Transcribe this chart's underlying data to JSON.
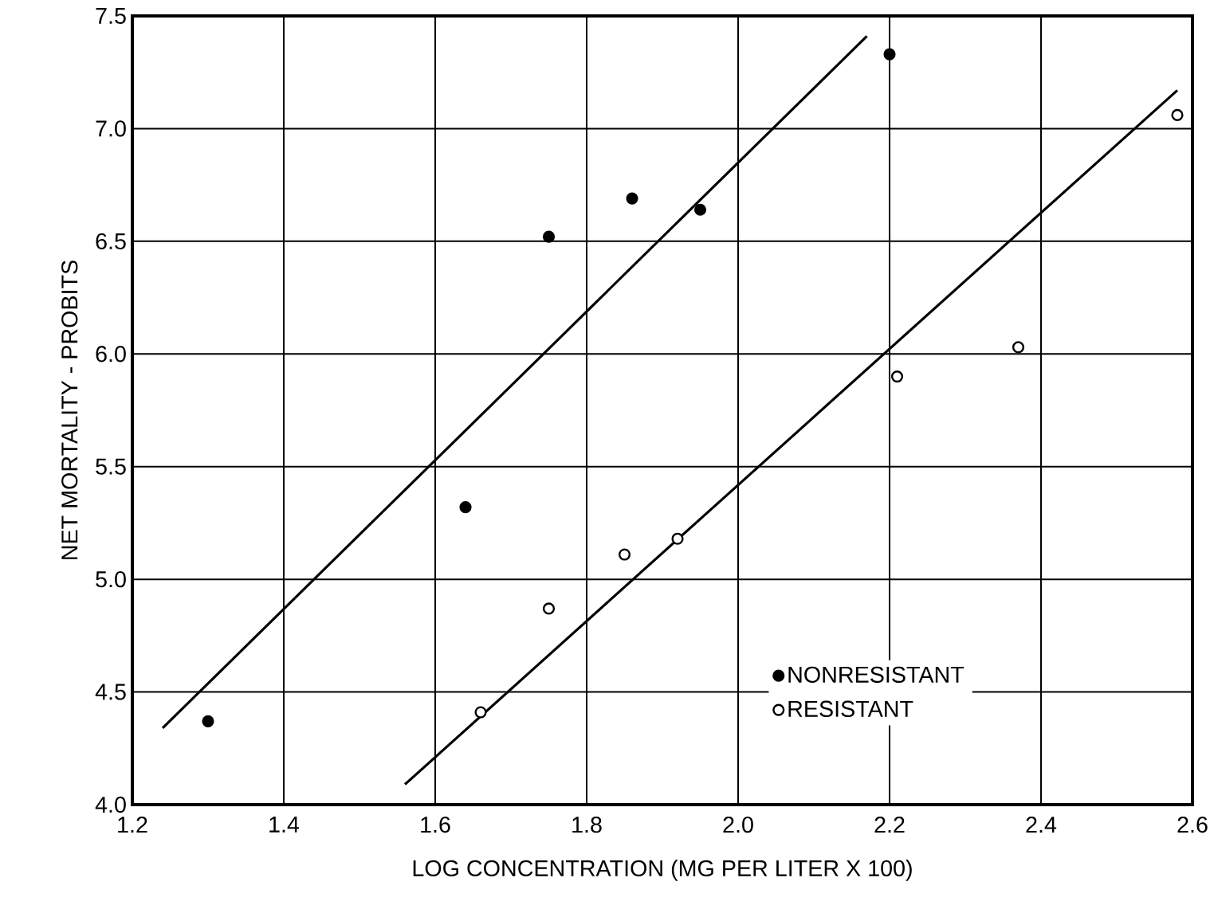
{
  "chart_data": {
    "type": "scatter",
    "xlabel": "LOG CONCENTRATION (MG PER LITER X 100)",
    "ylabel": "NET MORTALITY - PROBITS",
    "series": [
      {
        "name": "NONRESISTANT",
        "marker": "circle",
        "color": "#000000",
        "x": [
          1.3,
          1.64,
          1.75,
          1.86,
          1.95,
          2.2
        ],
        "values": [
          4.37,
          5.32,
          6.52,
          6.69,
          6.64,
          7.33
        ]
      },
      {
        "name": "RESISTANT",
        "marker": "circle",
        "color": "#000000",
        "x": [
          1.66,
          1.75,
          1.85,
          1.92,
          2.21,
          2.37,
          2.58
        ],
        "values": [
          4.41,
          4.87,
          5.11,
          5.18,
          5.9,
          6.03,
          7.06
        ]
      },
      {
        "type": "line",
        "marker": "none",
        "color": "#000000",
        "x": [
          1.24,
          2.17
        ],
        "values": [
          4.34,
          7.41
        ]
      },
      {
        "type": "line",
        "marker": "none",
        "color": "#000000",
        "x": [
          1.56,
          2.58
        ],
        "values": [
          4.09,
          7.17
        ]
      }
    ],
    "xlim": [
      1.2,
      2.6
    ],
    "ylim": [
      4.0,
      7.5
    ],
    "xticks": [
      1.2,
      1.4,
      1.6,
      1.8,
      {
        "value": 2.0,
        "label": "2.0"
      },
      2.2,
      2.4,
      2.6
    ],
    "yticks": [
      {
        "value": 4.0,
        "label": "4.0"
      },
      4.5,
      {
        "value": 5.0,
        "label": "5.0"
      },
      5.5,
      {
        "value": 6.0,
        "label": "6.0"
      },
      6.5,
      {
        "value": 7.0,
        "label": "7.0"
      },
      7.5
    ],
    "grid": true,
    "legend": "bottom right"
  }
}
